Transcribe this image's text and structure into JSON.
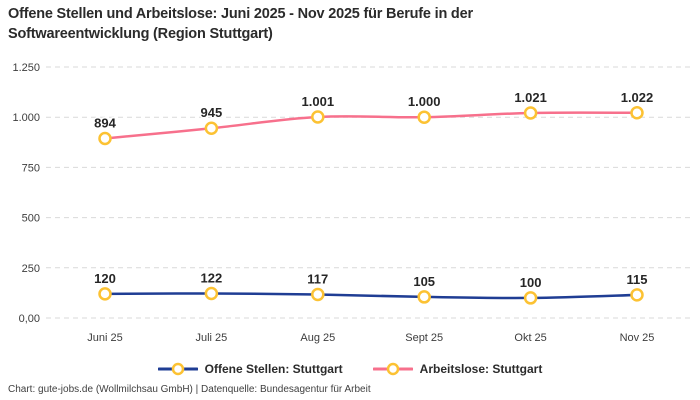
{
  "page": {
    "title": "Offene Stellen und Arbeitslose: Juni 2025 - Nov 2025 für Berufe in der Softwareentwicklung (Region Stuttgart)",
    "footer": "Chart: gute-jobs.de (Wollmilchsau GmbH) | Datenquelle: Bundesagentur für Arbeit"
  },
  "colors": {
    "offene_stellen_line": "#1f3d94",
    "arbeitslose_line": "#f7708c",
    "marker_stroke": "#fcc233",
    "marker_fill": "#ffffff",
    "gridline": "#d9d9d9",
    "title_text": "#2b2b2b",
    "axis_text": "#3d3d3d",
    "data_label_text": "#262626"
  },
  "chart_data": {
    "type": "line",
    "title": "Offene Stellen und Arbeitslose: Juni 2025 - Nov 2025 für Berufe in der Softwareentwicklung (Region Stuttgart)",
    "categories": [
      "Juni 25",
      "Juli 25",
      "Aug 25",
      "Sept 25",
      "Okt 25",
      "Nov 25"
    ],
    "series": [
      {
        "name": "Offene Stellen: Stuttgart",
        "values": [
          120,
          122,
          117,
          105,
          100,
          115
        ],
        "point_labels": [
          "120",
          "122",
          "117",
          "105",
          "100",
          "115"
        ],
        "color": "#1f3d94"
      },
      {
        "name": "Arbeitslose: Stuttgart",
        "values": [
          894,
          945,
          1001,
          1000,
          1021,
          1022
        ],
        "point_labels": [
          "894",
          "945",
          "1.001",
          "1.000",
          "1.021",
          "1.022"
        ],
        "color": "#f7708c"
      }
    ],
    "y_axis": {
      "range": [
        0,
        1250
      ],
      "ticks": [
        0,
        250,
        500,
        750,
        1000,
        1250
      ],
      "tick_labels": [
        "0,00",
        "250",
        "500",
        "750",
        "1.000",
        "1.250"
      ]
    },
    "xlabel": "",
    "ylabel": "",
    "grid": "horizontal-dashed",
    "legend_position": "bottom",
    "marker_style": "circle-white-fill-gold-ring"
  }
}
